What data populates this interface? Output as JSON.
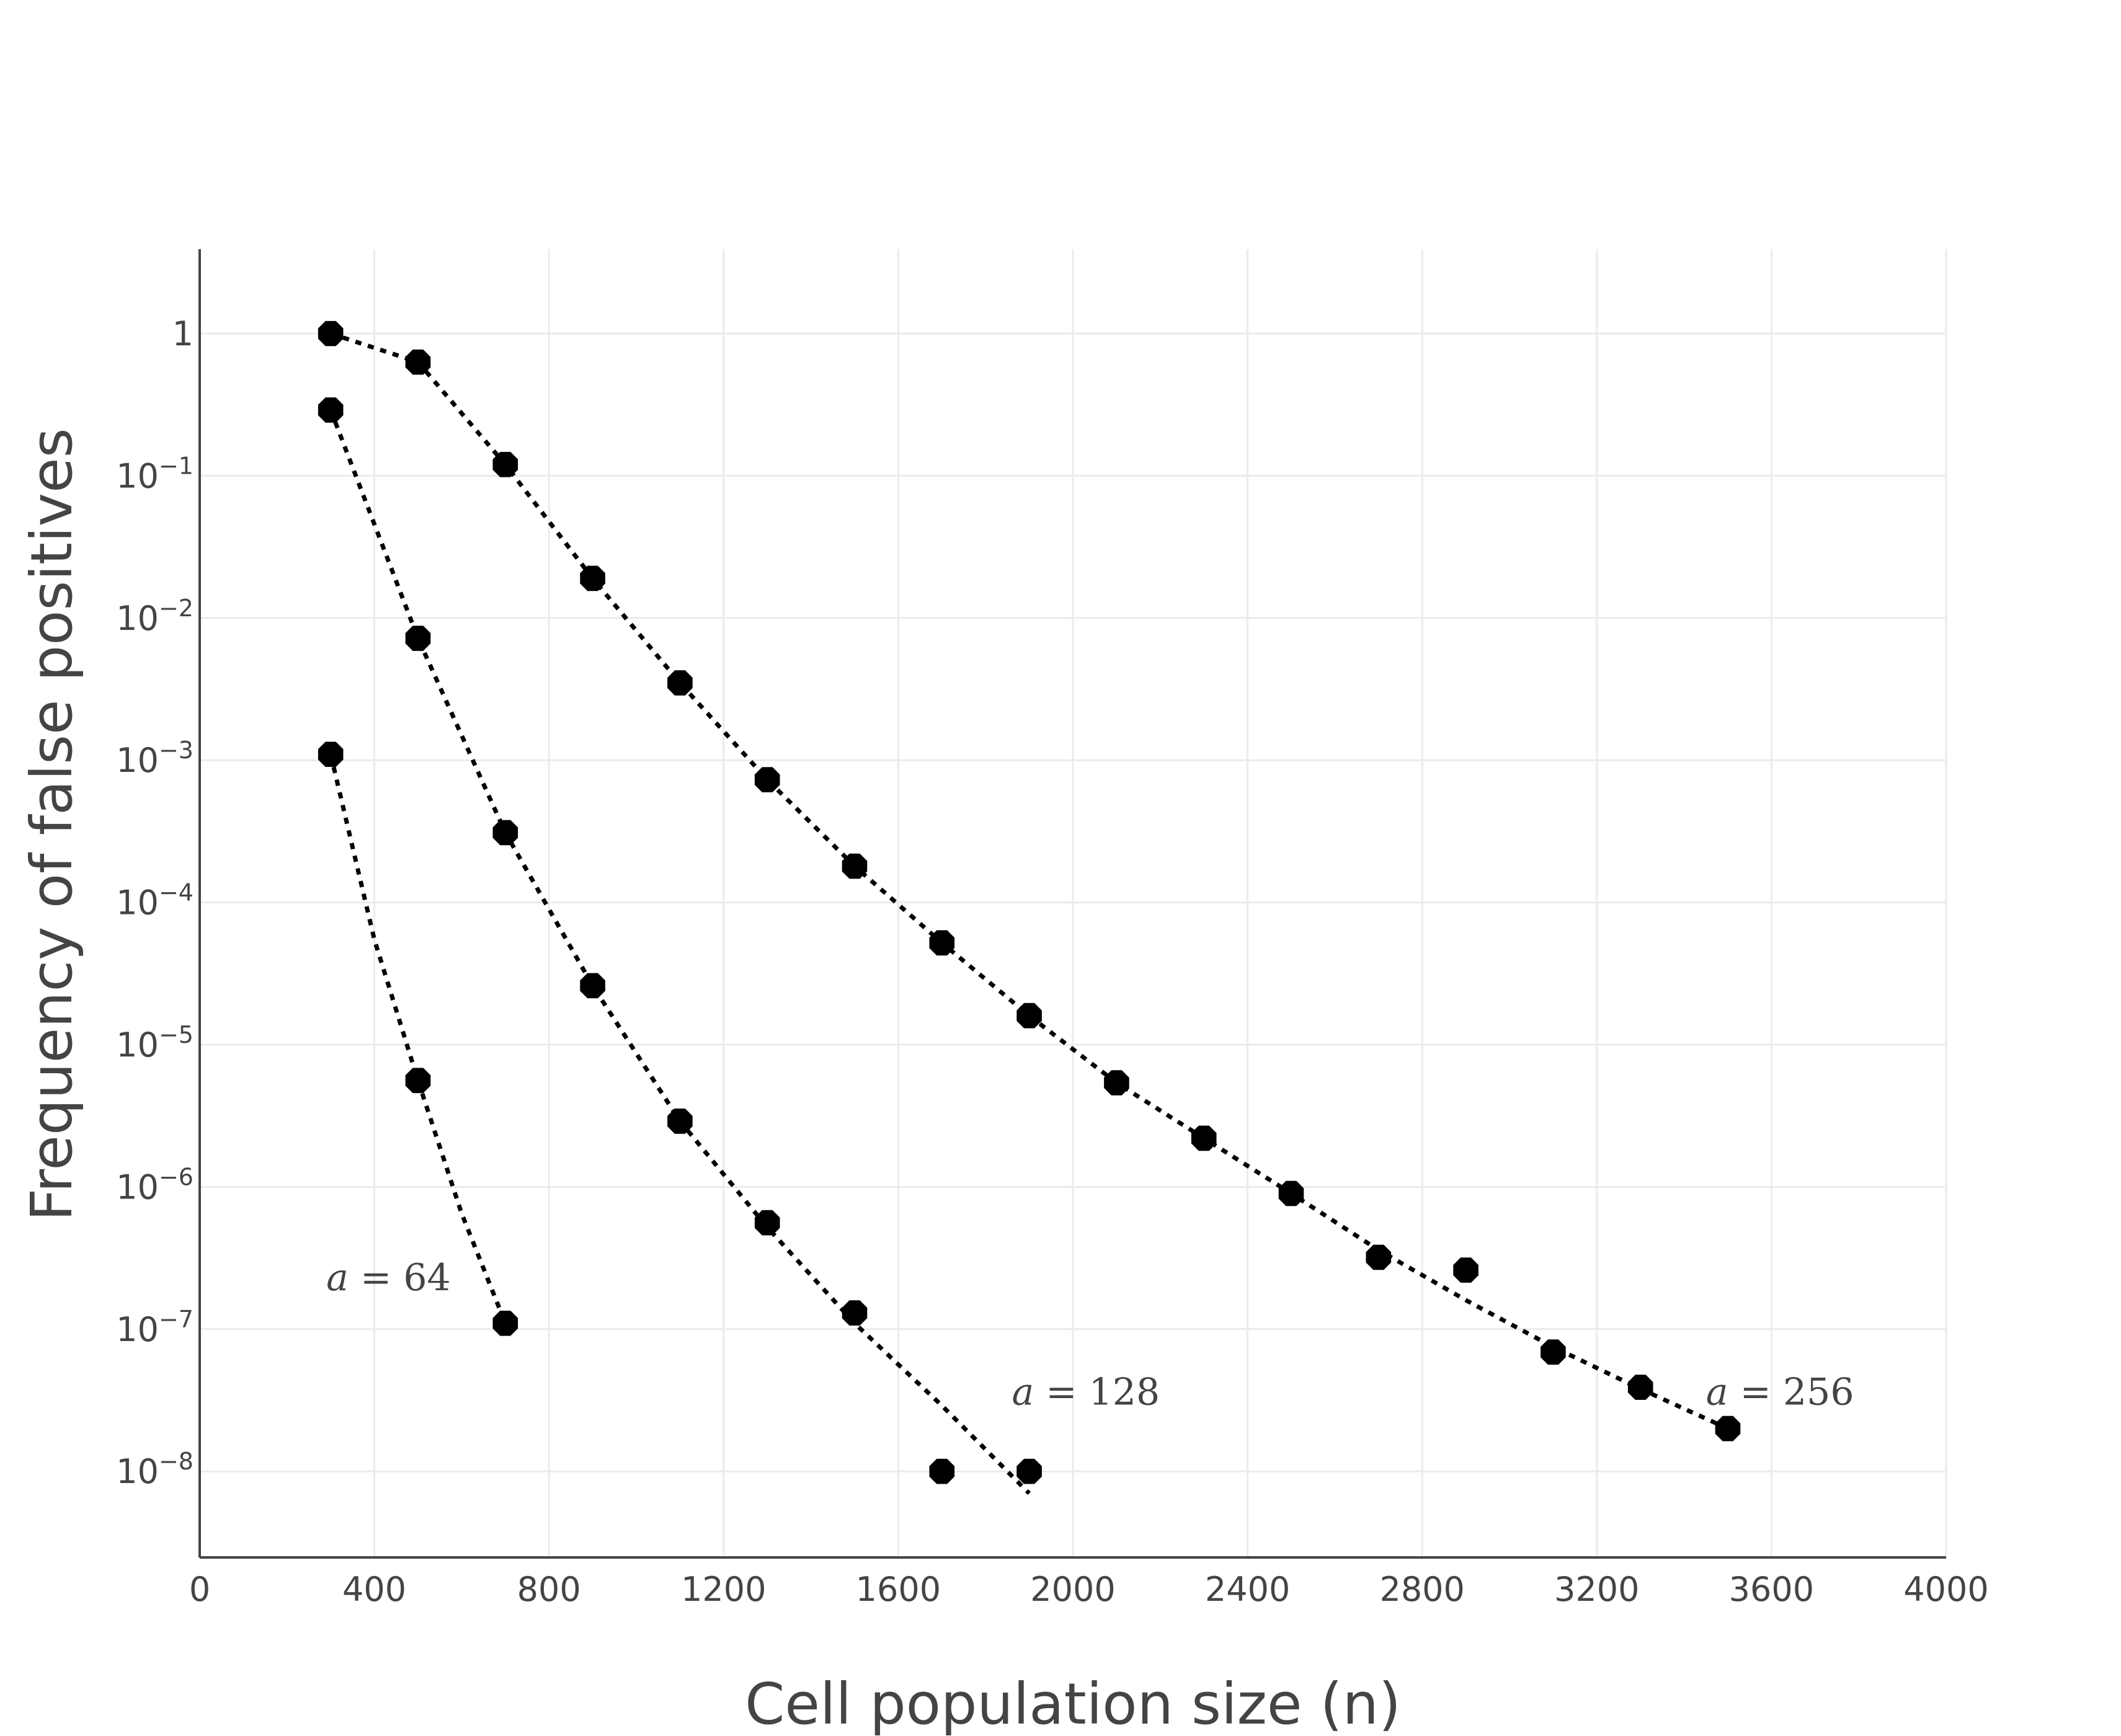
{
  "chart_data": {
    "type": "scatter",
    "title": "",
    "xlabel": "Cell population size (n)",
    "ylabel": "Frequency of false positives",
    "xlim": [
      0,
      4000
    ],
    "ylim": [
      3e-09,
      3.5
    ],
    "y_scale": "log",
    "grid": true,
    "legend": "none",
    "x_ticks": [
      {
        "value": 0,
        "label": "0"
      },
      {
        "value": 400,
        "label": "400"
      },
      {
        "value": 800,
        "label": "800"
      },
      {
        "value": 1200,
        "label": "1200"
      },
      {
        "value": 1600,
        "label": "1600"
      },
      {
        "value": 2000,
        "label": "2000"
      },
      {
        "value": 2400,
        "label": "2400"
      },
      {
        "value": 2800,
        "label": "2800"
      },
      {
        "value": 3200,
        "label": "3200"
      },
      {
        "value": 3600,
        "label": "3600"
      },
      {
        "value": 4000,
        "label": "4000"
      }
    ],
    "y_ticks": [
      {
        "value": 1,
        "label": "1"
      },
      {
        "value": 0.1,
        "label": "10",
        "exponent": "−1"
      },
      {
        "value": 0.01,
        "label": "10",
        "exponent": "−2"
      },
      {
        "value": 0.001,
        "label": "10",
        "exponent": "−3"
      },
      {
        "value": 0.0001,
        "label": "10",
        "exponent": "−4"
      },
      {
        "value": 1e-05,
        "label": "10",
        "exponent": "−5"
      },
      {
        "value": 1e-06,
        "label": "10",
        "exponent": "−6"
      },
      {
        "value": 1e-07,
        "label": "10",
        "exponent": "−7"
      },
      {
        "value": 1e-08,
        "label": "10",
        "exponent": "−8"
      }
    ],
    "series": [
      {
        "points": [
          [
            300,
            0.0011
          ],
          [
            500,
            5.6e-06
          ],
          [
            700,
            1.1e-07
          ]
        ],
        "fit": [
          [
            300,
            0.0011
          ],
          [
            400,
            5.5e-05
          ],
          [
            500,
            5.6e-06
          ],
          [
            600,
            6.5e-07
          ],
          [
            700,
            1.1e-07
          ]
        ]
      },
      {
        "points": [
          [
            300,
            0.29
          ],
          [
            500,
            0.0072
          ],
          [
            700,
            0.00031
          ],
          [
            900,
            2.6e-05
          ],
          [
            1100,
            2.9e-06
          ],
          [
            1300,
            5.6e-07
          ],
          [
            1500,
            1.3e-07
          ],
          [
            1700,
            1e-08
          ],
          [
            1900,
            1e-08
          ]
        ],
        "fit": [
          [
            300,
            0.29
          ],
          [
            500,
            0.0072
          ],
          [
            700,
            0.00031
          ],
          [
            900,
            2.6e-05
          ],
          [
            1100,
            2.9e-06
          ],
          [
            1300,
            5.2e-07
          ],
          [
            1500,
            1.1e-07
          ],
          [
            1700,
            2.9e-08
          ],
          [
            1900,
            7e-09
          ]
        ]
      },
      {
        "points": [
          [
            300,
            1.0
          ],
          [
            500,
            0.63
          ],
          [
            700,
            0.12
          ],
          [
            900,
            0.019
          ],
          [
            1100,
            0.0035
          ],
          [
            1300,
            0.00073
          ],
          [
            1500,
            0.00018
          ],
          [
            1700,
            5.2e-05
          ],
          [
            1900,
            1.6e-05
          ],
          [
            2100,
            5.4e-06
          ],
          [
            2300,
            2.2e-06
          ],
          [
            2500,
            9e-07
          ],
          [
            2700,
            3.2e-07
          ],
          [
            2900,
            2.6e-07
          ],
          [
            3100,
            6.9e-08
          ],
          [
            3300,
            3.9e-08
          ],
          [
            3500,
            2e-08
          ]
        ],
        "fit": [
          [
            300,
            1.0
          ],
          [
            500,
            0.63
          ],
          [
            700,
            0.12
          ],
          [
            900,
            0.019
          ],
          [
            1100,
            0.0035
          ],
          [
            1300,
            0.00073
          ],
          [
            1500,
            0.00018
          ],
          [
            1700,
            5.2e-05
          ],
          [
            1900,
            1.6e-05
          ],
          [
            2100,
            5.4e-06
          ],
          [
            2300,
            2.2e-06
          ],
          [
            2500,
            9e-07
          ],
          [
            2700,
            3.6e-07
          ],
          [
            2900,
            1.6e-07
          ],
          [
            3100,
            7.5e-08
          ],
          [
            3300,
            3.8e-08
          ],
          [
            3500,
            2e-08
          ]
        ]
      }
    ],
    "annotations": [
      {
        "text": "a = 64",
        "x": 290,
        "y": 2.3e-07
      },
      {
        "text": "a = 128",
        "x": 1860,
        "y": 3.6e-08
      },
      {
        "text": "a = 256",
        "x": 3450,
        "y": 3.6e-08
      }
    ]
  }
}
